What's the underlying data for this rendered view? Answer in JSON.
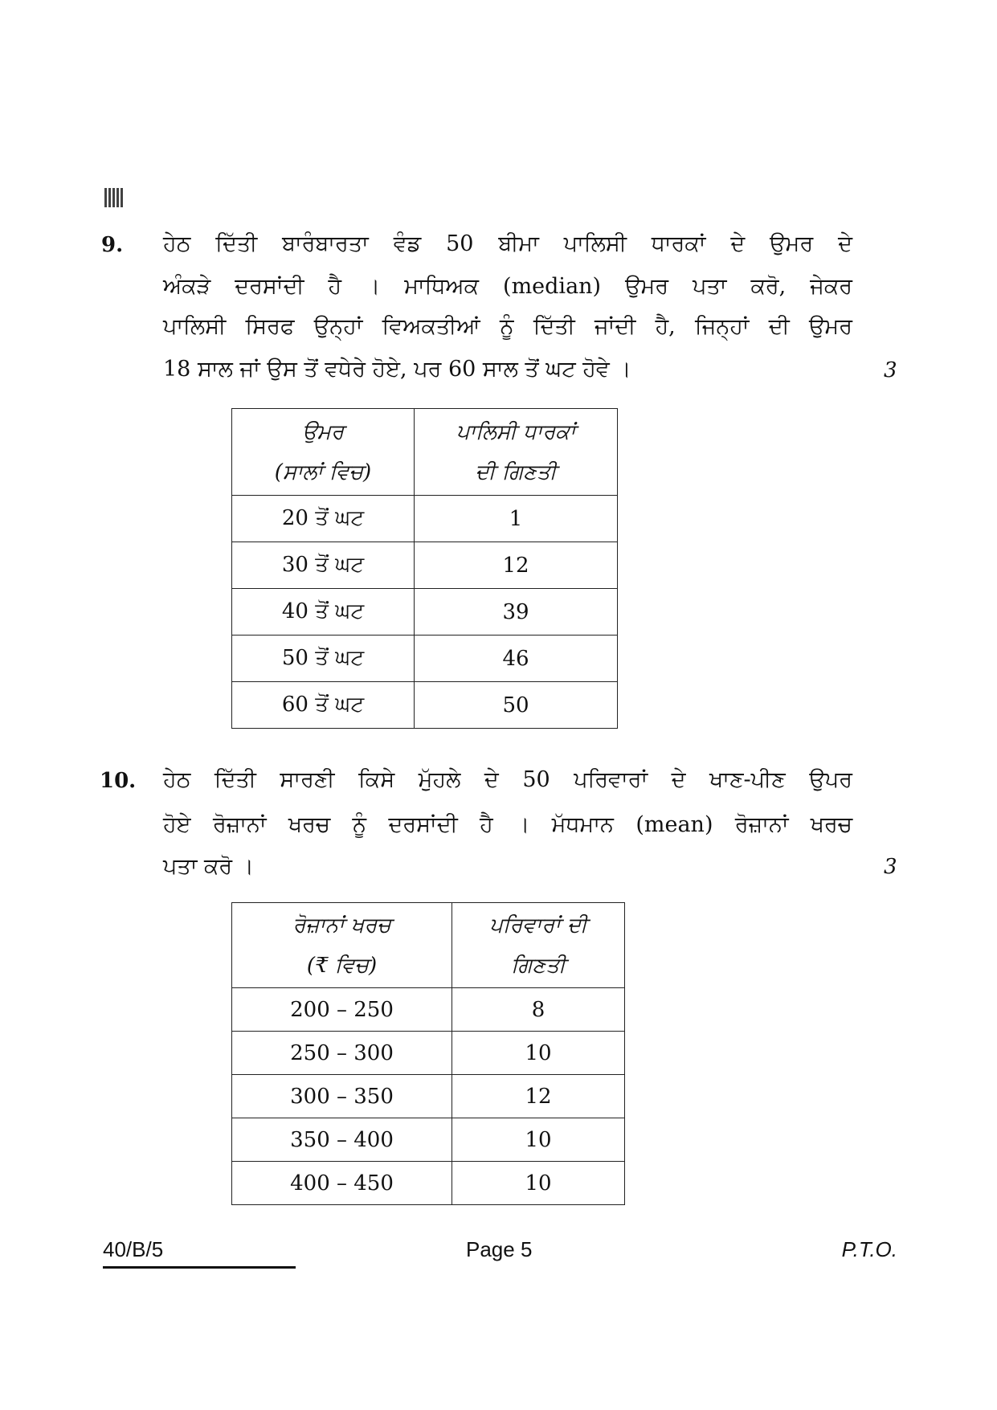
{
  "questions": [
    {
      "number": "9.",
      "marks": "3",
      "lines": [
        "ਹੇਠ ਦਿੱਤੀ ਬਾਰੰਬਾਰਤਾ ਵੰਡ 50 ਬੀਮਾ ਪਾਲਿਸੀ ਧਾਰਕਾਂ ਦੇ ਉਮਰ ਦੇ",
        "ਅੰਕੜੇ ਦਰਸਾਂਦੀ ਹੈ । ਮਾਧਿਅਕ (median) ਉਮਰ ਪਤਾ ਕਰੋ, ਜੇਕਰ",
        "ਪਾਲਿਸੀ ਸਿਰਫ ਉਨ੍ਹਾਂ ਵਿਅਕਤੀਆਂ ਨੂੰ ਦਿੱਤੀ ਜਾਂਦੀ ਹੈ, ਜਿਨ੍ਹਾਂ ਦੀ ਉਮਰ",
        "18 ਸਾਲ ਜਾਂ ਉਸ ਤੋਂ ਵਧੇਰੇ ਹੋਏ, ਪਰ 60 ਸਾਲ ਤੋਂ ਘਟ ਹੋਵੇ ।"
      ],
      "table": {
        "headers": [
          [
            "ਉਮਰ",
            "(ਸਾਲਾਂ ਵਿਚ)"
          ],
          [
            "ਪਾਲਿਸੀ ਧਾਰਕਾਂ",
            "ਦੀ ਗਿਣਤੀ"
          ]
        ],
        "rows": [
          [
            "20 ਤੋਂ ਘਟ",
            "1"
          ],
          [
            "30 ਤੋਂ ਘਟ",
            "12"
          ],
          [
            "40 ਤੋਂ ਘਟ",
            "39"
          ],
          [
            "50 ਤੋਂ ਘਟ",
            "46"
          ],
          [
            "60 ਤੋਂ ਘਟ",
            "50"
          ]
        ]
      }
    },
    {
      "number": "10.",
      "marks": "3",
      "lines": [
        "ਹੇਠ ਦਿੱਤੀ ਸਾਰਣੀ ਕਿਸੇ ਮੁੱਹਲੇ ਦੇ 50 ਪਰਿਵਾਰਾਂ ਦੇ ਖਾਣ-ਪੀਣ ਉਪਰ",
        "ਹੋਏ ਰੋਜ਼ਾਨਾਂ ਖਰਚ ਨੂੰ ਦਰਸਾਂਦੀ ਹੈ । ਮੱਧਮਾਨ (mean) ਰੋਜ਼ਾਨਾਂ ਖਰਚ",
        "ਪਤਾ ਕਰੋ ।"
      ],
      "table": {
        "headers": [
          [
            "ਰੋਜ਼ਾਨਾਂ ਖਰਚ",
            "(₹ ਵਿਚ)"
          ],
          [
            "ਪਰਿਵਾਰਾਂ ਦੀ",
            "ਗਿਣਤੀ"
          ]
        ],
        "rows": [
          [
            "200 – 250",
            "8"
          ],
          [
            "250 – 300",
            "10"
          ],
          [
            "300 – 350",
            "12"
          ],
          [
            "350 – 400",
            "10"
          ],
          [
            "400 – 450",
            "10"
          ]
        ]
      }
    }
  ],
  "footer": {
    "code": "40/B/5",
    "page": "Page 5",
    "pto": "P.T.O."
  }
}
